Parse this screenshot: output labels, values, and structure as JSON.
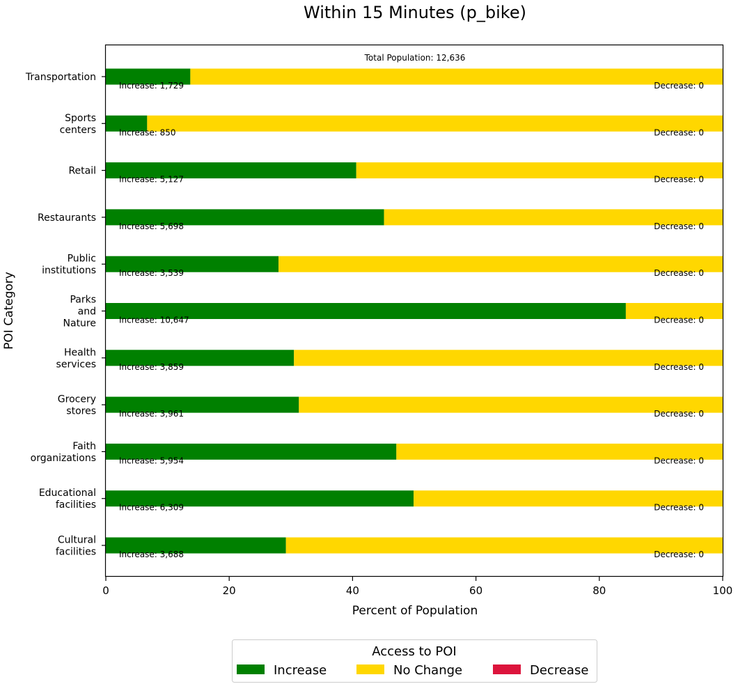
{
  "chart_data": {
    "type": "bar",
    "orientation": "horizontal",
    "stacked": true,
    "title": "Within 15 Minutes (p_bike)",
    "xlabel": "Percent of Population",
    "ylabel": "POI Category",
    "xlim": [
      0,
      100
    ],
    "xticks": [
      0,
      20,
      40,
      60,
      80,
      100
    ],
    "total_population_label": "Total Population: 12,636",
    "total_population": 12636,
    "categories": [
      "Transportation",
      "Sports centers",
      "Retail",
      "Restaurants",
      "Public institutions",
      "Parks and Nature",
      "Health services",
      "Grocery stores",
      "Faith organizations",
      "Educational facilities",
      "Cultural facilities"
    ],
    "category_lines": [
      [
        "Transportation"
      ],
      [
        "Sports",
        "centers"
      ],
      [
        "Retail"
      ],
      [
        "Restaurants"
      ],
      [
        "Public",
        "institutions"
      ],
      [
        "Parks",
        "and",
        "Nature"
      ],
      [
        "Health",
        "services"
      ],
      [
        "Grocery",
        "stores"
      ],
      [
        "Faith",
        "organizations"
      ],
      [
        "Educational",
        "facilities"
      ],
      [
        "Cultural",
        "facilities"
      ]
    ],
    "series": [
      {
        "name": "Increase",
        "color": "#008000",
        "values": [
          13.7,
          6.7,
          40.6,
          45.1,
          28.0,
          84.3,
          30.5,
          31.3,
          47.1,
          49.9,
          29.2
        ]
      },
      {
        "name": "No Change",
        "color": "#ffd700",
        "values": [
          86.3,
          93.3,
          59.4,
          54.9,
          72.0,
          15.7,
          69.5,
          68.7,
          52.9,
          50.1,
          70.8
        ]
      },
      {
        "name": "Decrease",
        "color": "#dc143c",
        "values": [
          0,
          0,
          0,
          0,
          0,
          0,
          0,
          0,
          0,
          0,
          0
        ]
      }
    ],
    "increase_labels": [
      "Increase: 1,729",
      "Increase: 850",
      "Increase: 5,127",
      "Increase: 5,698",
      "Increase: 3,539",
      "Increase: 10,647",
      "Increase: 3,859",
      "Increase: 3,961",
      "Increase: 5,954",
      "Increase: 6,309",
      "Increase: 3,688"
    ],
    "decrease_labels": [
      "Decrease: 0",
      "Decrease: 0",
      "Decrease: 0",
      "Decrease: 0",
      "Decrease: 0",
      "Decrease: 0",
      "Decrease: 0",
      "Decrease: 0",
      "Decrease: 0",
      "Decrease: 0",
      "Decrease: 0"
    ],
    "legend": {
      "title": "Access to POI",
      "placement": "bottom-center",
      "entries": [
        "Increase",
        "No Change",
        "Decrease"
      ]
    }
  }
}
